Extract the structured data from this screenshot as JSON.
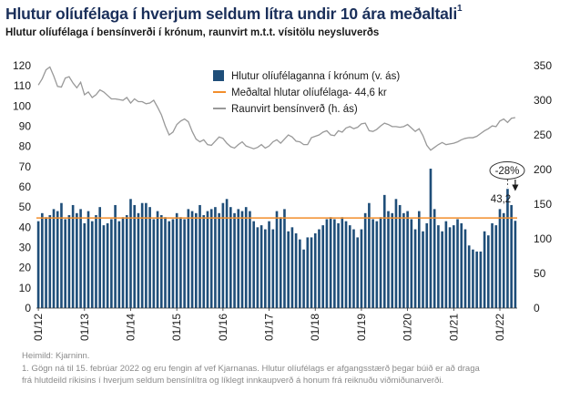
{
  "title": "Hlutur olíufélaga í hverjum seldum lítra undir 10 ára meðaltali",
  "title_footnote": "1",
  "subtitle": "Hlutur olíufélaga í bensínverði í krónum, raunvirt m.t.t. vísitölu neysluverðs",
  "footer": {
    "source": "Heimild: Kjarninn.",
    "note_line1": "1. Gögn ná til 15. febrúar 2022 og eru fengin af vef Kjarnanas. Hlutur olíufélags er afgangsstærð þegar búið er að draga",
    "note_line2": "frá hlutdeild ríkisins í hverjum seldum bensínlítra og líklegt innkaupverð á honum frá reiknuðu viðmiðunarverði."
  },
  "chart_data": {
    "type": "bar",
    "left_axis": {
      "min": 0,
      "max": 120,
      "ticks": [
        0,
        10,
        20,
        30,
        40,
        50,
        60,
        70,
        80,
        90,
        100,
        110,
        120
      ]
    },
    "right_axis": {
      "min": 0,
      "max": 350,
      "ticks": [
        0,
        50,
        100,
        150,
        200,
        250,
        300,
        350
      ]
    },
    "x_tick_labels": [
      "01/12",
      "01/13",
      "01/14",
      "01/15",
      "01/16",
      "01/17",
      "01/18",
      "01/19",
      "01/20",
      "01/21",
      "01/22"
    ],
    "grid": false,
    "legend_position": "top-center",
    "series": [
      {
        "name": "Hlutur olíufélaganna í krónum (v. ás)",
        "kind": "bar",
        "axis": "left",
        "color": "#1f4e79",
        "values": [
          43,
          47,
          45,
          46,
          49,
          48,
          52,
          44,
          46,
          51,
          47,
          49,
          42,
          48,
          43,
          46,
          50,
          41,
          42,
          44,
          51,
          43,
          45,
          46,
          54,
          51,
          47,
          52,
          52,
          50,
          44,
          48,
          46,
          45,
          43,
          44,
          47,
          45,
          44,
          49,
          48,
          47,
          51,
          46,
          48,
          49,
          50,
          47,
          52,
          54,
          50,
          47,
          49,
          48,
          50,
          48,
          43,
          40,
          41,
          39,
          43,
          39,
          48,
          45,
          49,
          38,
          40,
          37,
          34,
          29,
          35,
          35,
          37,
          39,
          41,
          44,
          45,
          44,
          42,
          45,
          43,
          41,
          39,
          35,
          39,
          47,
          52,
          44,
          43,
          45,
          56,
          48,
          47,
          54,
          51,
          47,
          48,
          44,
          39,
          48,
          38,
          42,
          69,
          49,
          41,
          38,
          43,
          40,
          41,
          44,
          42,
          39,
          31,
          29,
          28,
          28,
          38,
          36,
          42,
          41,
          49,
          47,
          59,
          51,
          43.2
        ],
        "highlight_last": true
      },
      {
        "name": "Meðaltal hlutar olíufélaga- 44,6 kr",
        "kind": "hline",
        "axis": "left",
        "color": "#f28e2b",
        "value": 44.6
      },
      {
        "name": "Raunvirt bensínverð (h. ás)",
        "kind": "line",
        "axis": "right",
        "color": "#999999",
        "values": [
          322,
          331,
          344,
          348,
          335,
          320,
          319,
          332,
          334,
          325,
          318,
          326,
          308,
          312,
          304,
          308,
          315,
          312,
          307,
          302,
          302,
          301,
          300,
          304,
          296,
          302,
          298,
          298,
          295,
          296,
          300,
          290,
          279,
          263,
          250,
          254,
          265,
          270,
          273,
          269,
          255,
          244,
          240,
          243,
          236,
          235,
          241,
          247,
          245,
          238,
          233,
          231,
          236,
          240,
          234,
          232,
          230,
          232,
          236,
          231,
          234,
          240,
          243,
          238,
          244,
          250,
          247,
          241,
          240,
          236,
          236,
          246,
          248,
          250,
          254,
          256,
          250,
          249,
          256,
          254,
          260,
          262,
          259,
          261,
          266,
          267,
          256,
          255,
          258,
          263,
          267,
          265,
          262,
          262,
          261,
          262,
          265,
          260,
          255,
          259,
          249,
          235,
          228,
          232,
          236,
          239,
          236,
          237,
          238,
          240,
          243,
          245,
          246,
          246,
          248,
          252,
          256,
          259,
          263,
          262,
          270,
          273,
          268,
          274,
          275
        ]
      }
    ],
    "annotation": {
      "last_value_label": "43,2",
      "change_label": "-28%"
    }
  }
}
